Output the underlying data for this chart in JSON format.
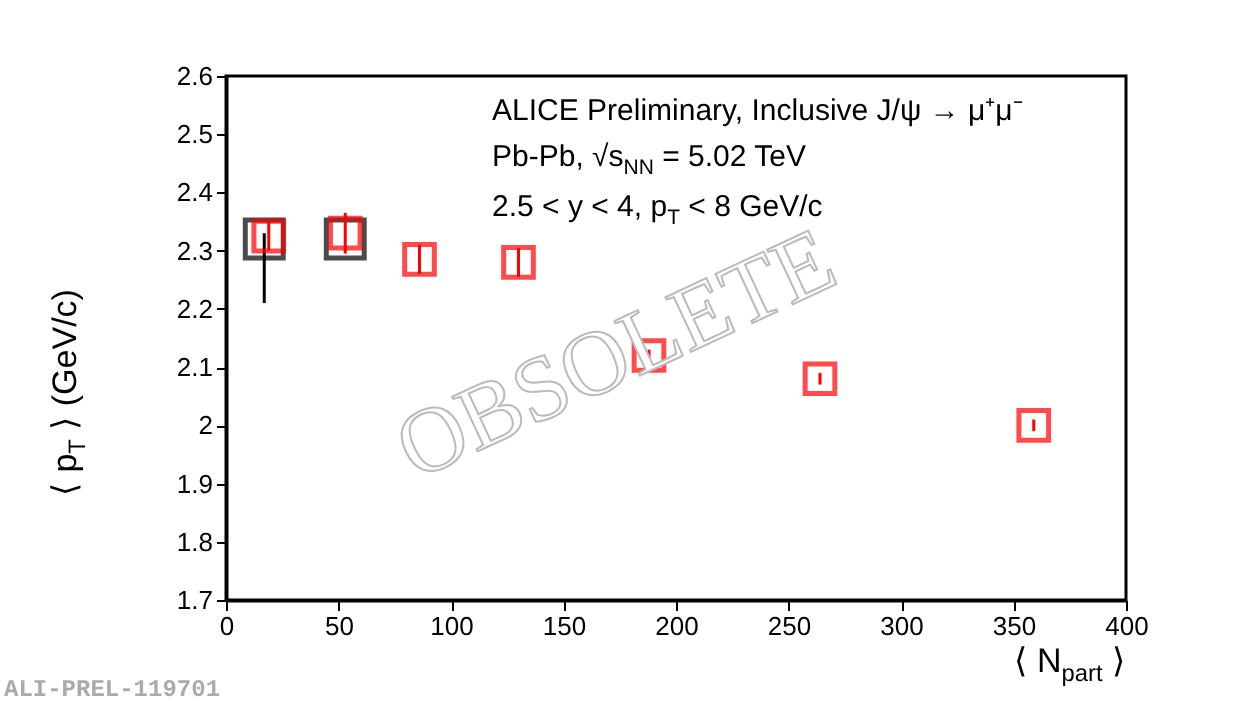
{
  "chart_data": {
    "type": "scatter",
    "xlabel": "⟨ N$_{part}$ ⟩",
    "ylabel": "⟨ p$_{T}$ ⟩ (GeV/c)",
    "annotations": [
      "ALICE Preliminary, Inclusive J/ψ → μ⁺μ⁻",
      "Pb-Pb, √s$_{NN}$ = 5.02 TeV",
      "2.5 < y < 4, p$_{T}$ < 8 GeV/c",
      "OBSOLETE",
      "ALI-PREL-119701"
    ],
    "series": [
      {
        "color": "#000000",
        "marker": "square",
        "x": [
          17,
          53
        ],
        "values": [
          2.32,
          2.32
        ],
        "errors": [
          [
            2.21,
            2.33
          ],
          null
        ]
      },
      {
        "color": "#ff0000",
        "marker": "square",
        "x": [
          19,
          53,
          86,
          130,
          188,
          264,
          359
        ],
        "values": [
          2.325,
          2.33,
          2.285,
          2.28,
          2.12,
          2.08,
          2.0
        ],
        "errors": [
          0.025,
          0.035,
          0.025,
          0.025,
          0.01,
          0.01,
          0.01
        ]
      }
    ],
    "xlim": [
      0,
      400
    ],
    "xticks": [
      0,
      50,
      100,
      150,
      200,
      250,
      300,
      350,
      400
    ],
    "ylim": [
      1.7,
      2.6
    ],
    "yticks": [
      1.7,
      1.8,
      1.9,
      2,
      2.1,
      2.2,
      2.3,
      2.4,
      2.5,
      2.6
    ],
    "grid": false
  }
}
